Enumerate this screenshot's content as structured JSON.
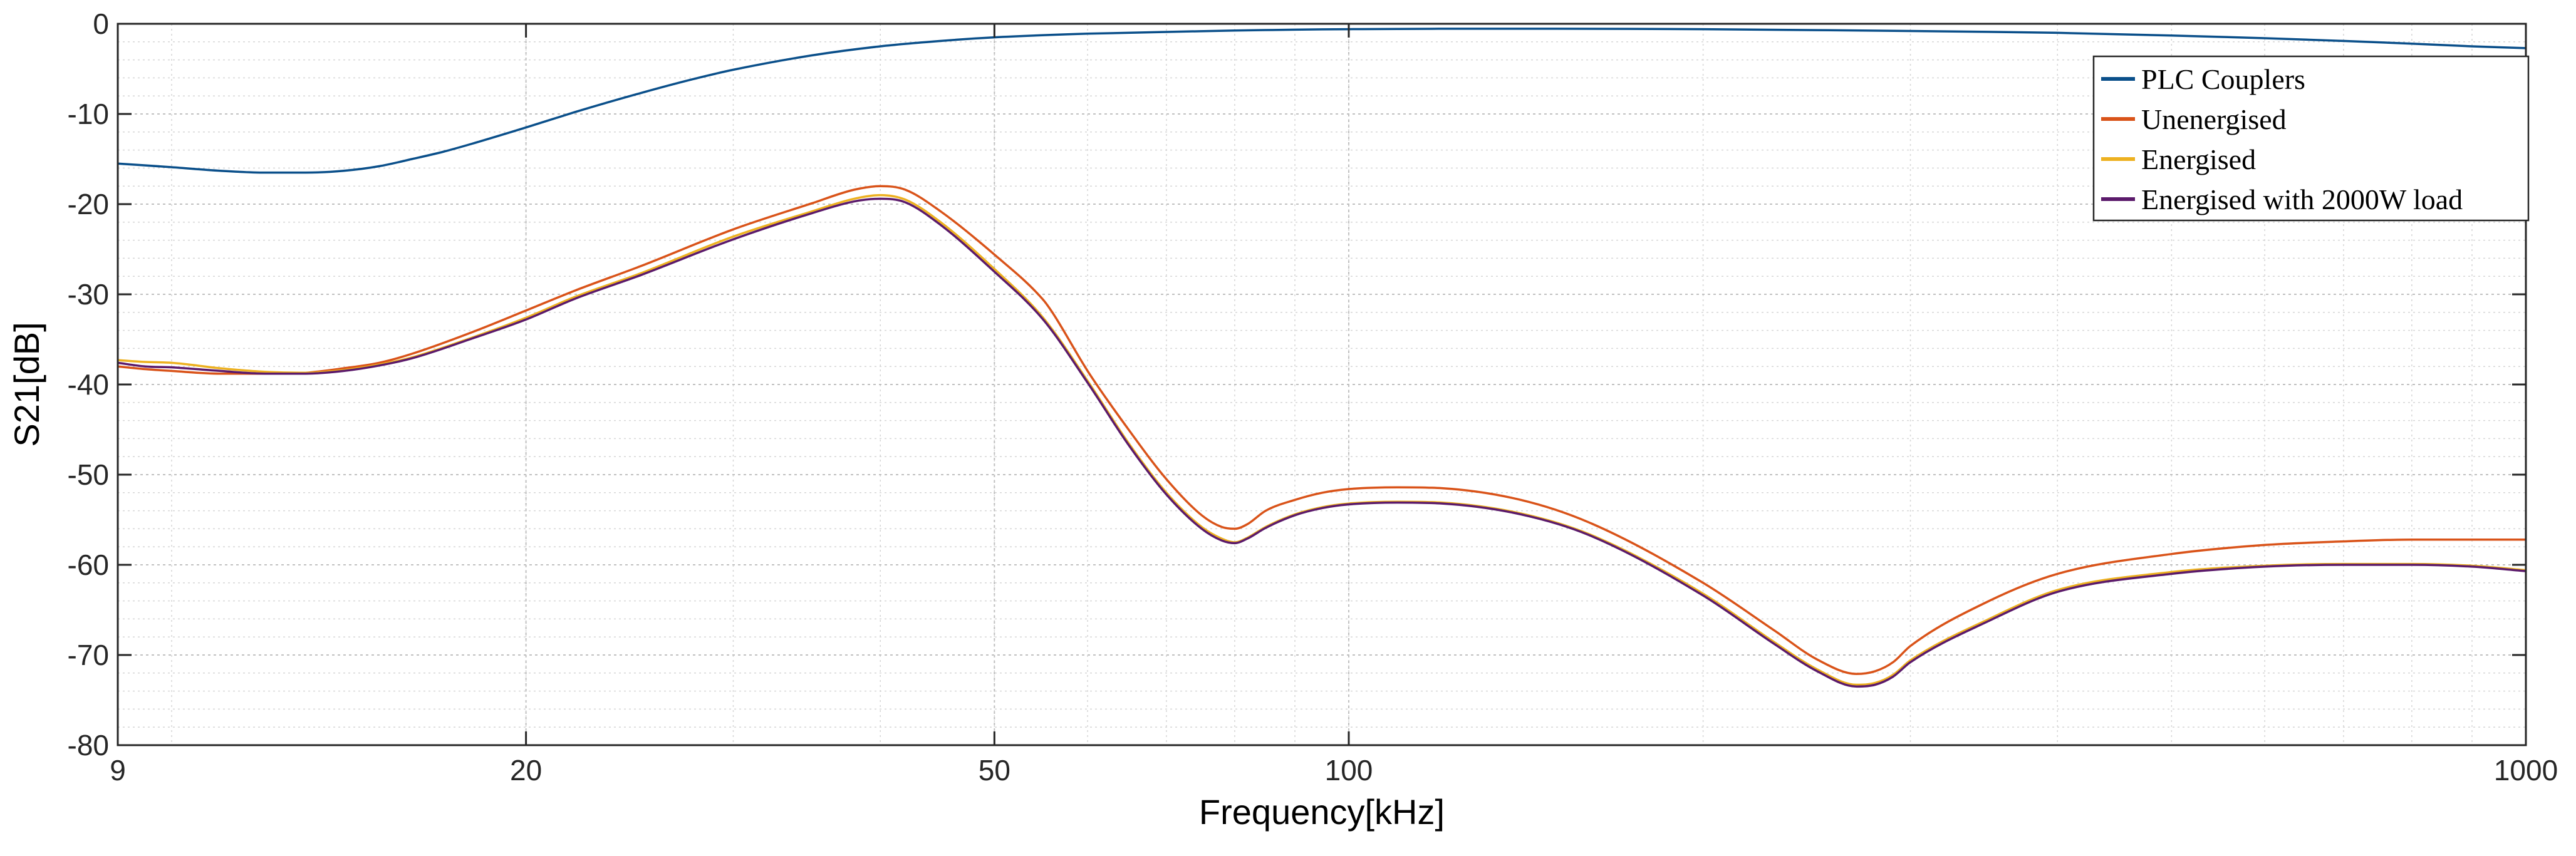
{
  "chart_data": {
    "type": "line",
    "title": "",
    "xlabel": "Frequency[kHz]",
    "ylabel": "S21[dB]",
    "xscale": "log",
    "xlim": [
      9,
      1000
    ],
    "ylim": [
      -80,
      0
    ],
    "xticks": [
      9,
      20,
      50,
      100,
      1000
    ],
    "xtick_labels": [
      "9",
      "20",
      "50",
      "100",
      "1000"
    ],
    "yticks": [
      0,
      -10,
      -20,
      -30,
      -40,
      -50,
      -60,
      -70,
      -80
    ],
    "ytick_labels": [
      "0",
      "-10",
      "-20",
      "-30",
      "-40",
      "-50",
      "-60",
      "-70",
      "-80"
    ],
    "grid": true,
    "minor_grid": true,
    "legend_position": "top-right",
    "series": [
      {
        "name": "PLC Couplers",
        "color": "#0a4f8a",
        "x": [
          9,
          10,
          11,
          12,
          13,
          14,
          15,
          16,
          17,
          18,
          20,
          22,
          25,
          28,
          30,
          35,
          40,
          45,
          50,
          60,
          70,
          80,
          90,
          100,
          120,
          150,
          200,
          250,
          300,
          400,
          500,
          600,
          700,
          800,
          900,
          1000
        ],
        "y": [
          -15.5,
          -15.9,
          -16.3,
          -16.5,
          -16.5,
          -16.3,
          -15.8,
          -15.0,
          -14.2,
          -13.3,
          -11.5,
          -9.8,
          -7.7,
          -6.0,
          -5.1,
          -3.5,
          -2.5,
          -1.9,
          -1.5,
          -1.1,
          -0.9,
          -0.75,
          -0.65,
          -0.6,
          -0.55,
          -0.55,
          -0.6,
          -0.7,
          -0.8,
          -1.0,
          -1.3,
          -1.6,
          -1.9,
          -2.2,
          -2.5,
          -2.7
        ]
      },
      {
        "name": "Unenergised",
        "color": "#d95319",
        "x": [
          9,
          9.5,
          10,
          11,
          12,
          13,
          14,
          15,
          16,
          18,
          20,
          22,
          25,
          30,
          35,
          38,
          40,
          42,
          45,
          50,
          55,
          56,
          60,
          65,
          70,
          75,
          78,
          80,
          82,
          85,
          90,
          95,
          100,
          110,
          120,
          140,
          160,
          200,
          230,
          250,
          270,
          280,
          290,
          300,
          350,
          400,
          500,
          600,
          700,
          800,
          900,
          1000
        ],
        "y": [
          -38.0,
          -38.3,
          -38.5,
          -38.8,
          -38.8,
          -38.7,
          -38.2,
          -37.6,
          -36.6,
          -34.2,
          -31.8,
          -29.6,
          -26.9,
          -22.8,
          -19.9,
          -18.4,
          -18.0,
          -18.4,
          -20.8,
          -25.6,
          -30.6,
          -32.0,
          -38.5,
          -45.0,
          -50.5,
          -54.5,
          -55.8,
          -56.0,
          -55.5,
          -54.0,
          -52.8,
          -52.0,
          -51.6,
          -51.4,
          -51.5,
          -52.8,
          -55.3,
          -62.0,
          -67.3,
          -70.5,
          -72.1,
          -71.8,
          -70.8,
          -69.0,
          -64.0,
          -61.0,
          -58.8,
          -57.8,
          -57.4,
          -57.2,
          -57.2,
          -57.2
        ]
      },
      {
        "name": "Energised",
        "color": "#edb120",
        "x": [
          9,
          9.5,
          10,
          11,
          12,
          13,
          14,
          15,
          16,
          18,
          20,
          22,
          25,
          30,
          35,
          38,
          40,
          42,
          45,
          50,
          55,
          60,
          65,
          70,
          75,
          78,
          80,
          82,
          85,
          90,
          95,
          100,
          110,
          120,
          140,
          160,
          200,
          230,
          250,
          270,
          280,
          290,
          300,
          350,
          400,
          500,
          600,
          700,
          800,
          900,
          1000
        ],
        "y": [
          -37.3,
          -37.5,
          -37.6,
          -38.2,
          -38.6,
          -38.7,
          -38.4,
          -37.8,
          -37.0,
          -34.8,
          -32.6,
          -30.3,
          -27.7,
          -23.6,
          -20.8,
          -19.4,
          -19.0,
          -19.5,
          -22.0,
          -27.2,
          -32.6,
          -39.6,
          -46.5,
          -52.0,
          -55.8,
          -57.1,
          -57.5,
          -57.0,
          -55.8,
          -54.4,
          -53.6,
          -53.2,
          -53.0,
          -53.1,
          -54.3,
          -56.6,
          -63.2,
          -68.6,
          -71.6,
          -73.3,
          -73.1,
          -72.2,
          -70.6,
          -66.0,
          -62.8,
          -60.8,
          -60.1,
          -59.9,
          -59.9,
          -60.1,
          -60.6
        ]
      },
      {
        "name": "Energised with 2000W load",
        "color": "#5b1a6b",
        "x": [
          9,
          9.5,
          10,
          11,
          12,
          13,
          14,
          15,
          16,
          18,
          20,
          22,
          25,
          30,
          35,
          38,
          40,
          42,
          45,
          50,
          55,
          60,
          65,
          70,
          75,
          78,
          80,
          82,
          85,
          90,
          95,
          100,
          110,
          120,
          140,
          160,
          200,
          230,
          250,
          270,
          280,
          290,
          300,
          350,
          400,
          500,
          600,
          700,
          800,
          900,
          1000
        ],
        "y": [
          -37.6,
          -38.0,
          -38.1,
          -38.5,
          -38.8,
          -38.8,
          -38.5,
          -37.9,
          -37.1,
          -34.9,
          -32.8,
          -30.5,
          -27.9,
          -23.9,
          -21.0,
          -19.7,
          -19.4,
          -19.8,
          -22.3,
          -27.5,
          -32.8,
          -39.8,
          -46.7,
          -52.2,
          -56.0,
          -57.3,
          -57.6,
          -57.1,
          -55.9,
          -54.5,
          -53.7,
          -53.3,
          -53.1,
          -53.2,
          -54.4,
          -56.7,
          -63.4,
          -68.8,
          -71.8,
          -73.5,
          -73.3,
          -72.4,
          -70.8,
          -66.2,
          -63.0,
          -61.0,
          -60.2,
          -60.0,
          -60.0,
          -60.2,
          -60.7
        ]
      }
    ]
  }
}
